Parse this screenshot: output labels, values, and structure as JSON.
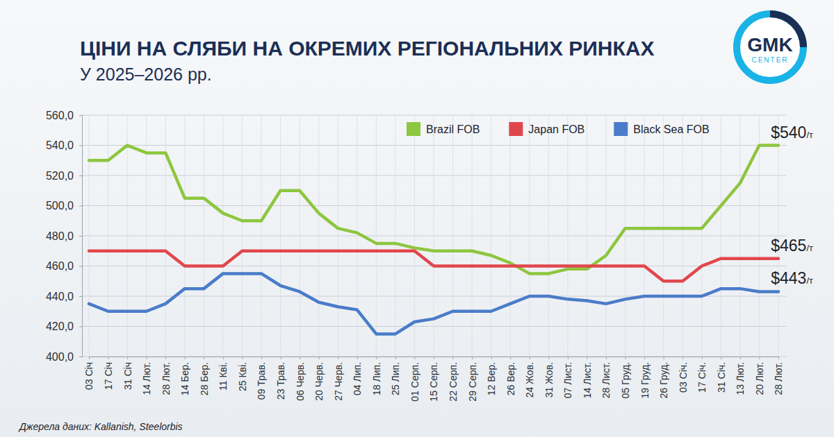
{
  "chart_data": {
    "type": "line",
    "title": "ЦІНИ НА СЛЯБИ НА ОКРЕМИХ РЕГІОНАЛЬНИХ РИНКАХ",
    "subtitle": "У 2025–2026 рр.",
    "source": "Джерела даних: Kallanish, Steelorbis",
    "logo": "GMK",
    "logo_subtext": "CENTER",
    "categories": [
      "03 Січ",
      "17 Січ",
      "31 Січ",
      "14 Лют.",
      "28 Лют.",
      "14 Бер.",
      "28 Бер.",
      "11 Кві.",
      "25 Кві.",
      "09 Трав.",
      "23 Трав.",
      "06 Черв.",
      "20 Черв.",
      "27 Черв.",
      "04 Лип.",
      "18 Лип.",
      "25 Лип.",
      "01 Серп.",
      "15 Серп.",
      "22 Серп.",
      "29 Серп.",
      "12 Вер.",
      "26 Вер.",
      "24 Жов.",
      "31 Жов.",
      "07 Лист.",
      "14 Лист.",
      "28 Лист.",
      "05 Груд.",
      "19 Груд.",
      "26 Груд.",
      "03 Січ.",
      "17 Січ.",
      "31 Січ.",
      "13 Лют.",
      "20 Лют.",
      "28 Лют."
    ],
    "series": [
      {
        "name": "Brazil FOB",
        "color": "#8dc63f",
        "values": [
          530,
          530,
          540,
          535,
          535,
          505,
          505,
          495,
          490,
          490,
          510,
          510,
          495,
          485,
          482,
          475,
          475,
          472,
          470,
          470,
          470,
          467,
          462,
          455,
          455,
          458,
          458,
          467,
          485,
          485,
          485,
          485,
          485,
          500,
          515,
          540,
          540
        ]
      },
      {
        "name": "Japan FOB",
        "color": "#e0474c",
        "values": [
          470,
          470,
          470,
          470,
          470,
          460,
          460,
          460,
          470,
          470,
          470,
          470,
          470,
          470,
          470,
          470,
          470,
          470,
          460,
          460,
          460,
          460,
          460,
          460,
          460,
          460,
          460,
          460,
          460,
          460,
          450,
          450,
          460,
          465,
          465,
          465,
          465
        ]
      },
      {
        "name": "Black Sea FOB",
        "color": "#4a7cc9",
        "values": [
          435,
          430,
          430,
          430,
          435,
          445,
          445,
          455,
          455,
          455,
          447,
          443,
          436,
          433,
          431,
          415,
          415,
          423,
          425,
          430,
          430,
          430,
          435,
          440,
          440,
          438,
          437,
          435,
          438,
          440,
          440,
          440,
          440,
          445,
          445,
          443,
          443
        ]
      }
    ],
    "annotations": [
      {
        "text": "$540",
        "unit": "/т",
        "value": 540
      },
      {
        "text": "$465",
        "unit": "/т",
        "value": 465
      },
      {
        "text": "$443",
        "unit": "/т",
        "value": 443
      }
    ],
    "ylim": [
      400,
      560
    ],
    "yticks": [
      {
        "value": 400,
        "label": "400,0"
      },
      {
        "value": 420,
        "label": "420,0"
      },
      {
        "value": 440,
        "label": "440,0"
      },
      {
        "value": 460,
        "label": "460,0"
      },
      {
        "value": 480,
        "label": "480,0"
      },
      {
        "value": 500,
        "label": "500,0"
      },
      {
        "value": 520,
        "label": "520,0"
      },
      {
        "value": 540,
        "label": "540,0"
      },
      {
        "value": 560,
        "label": "560,0"
      }
    ],
    "grid": true,
    "legend": "top-right"
  }
}
